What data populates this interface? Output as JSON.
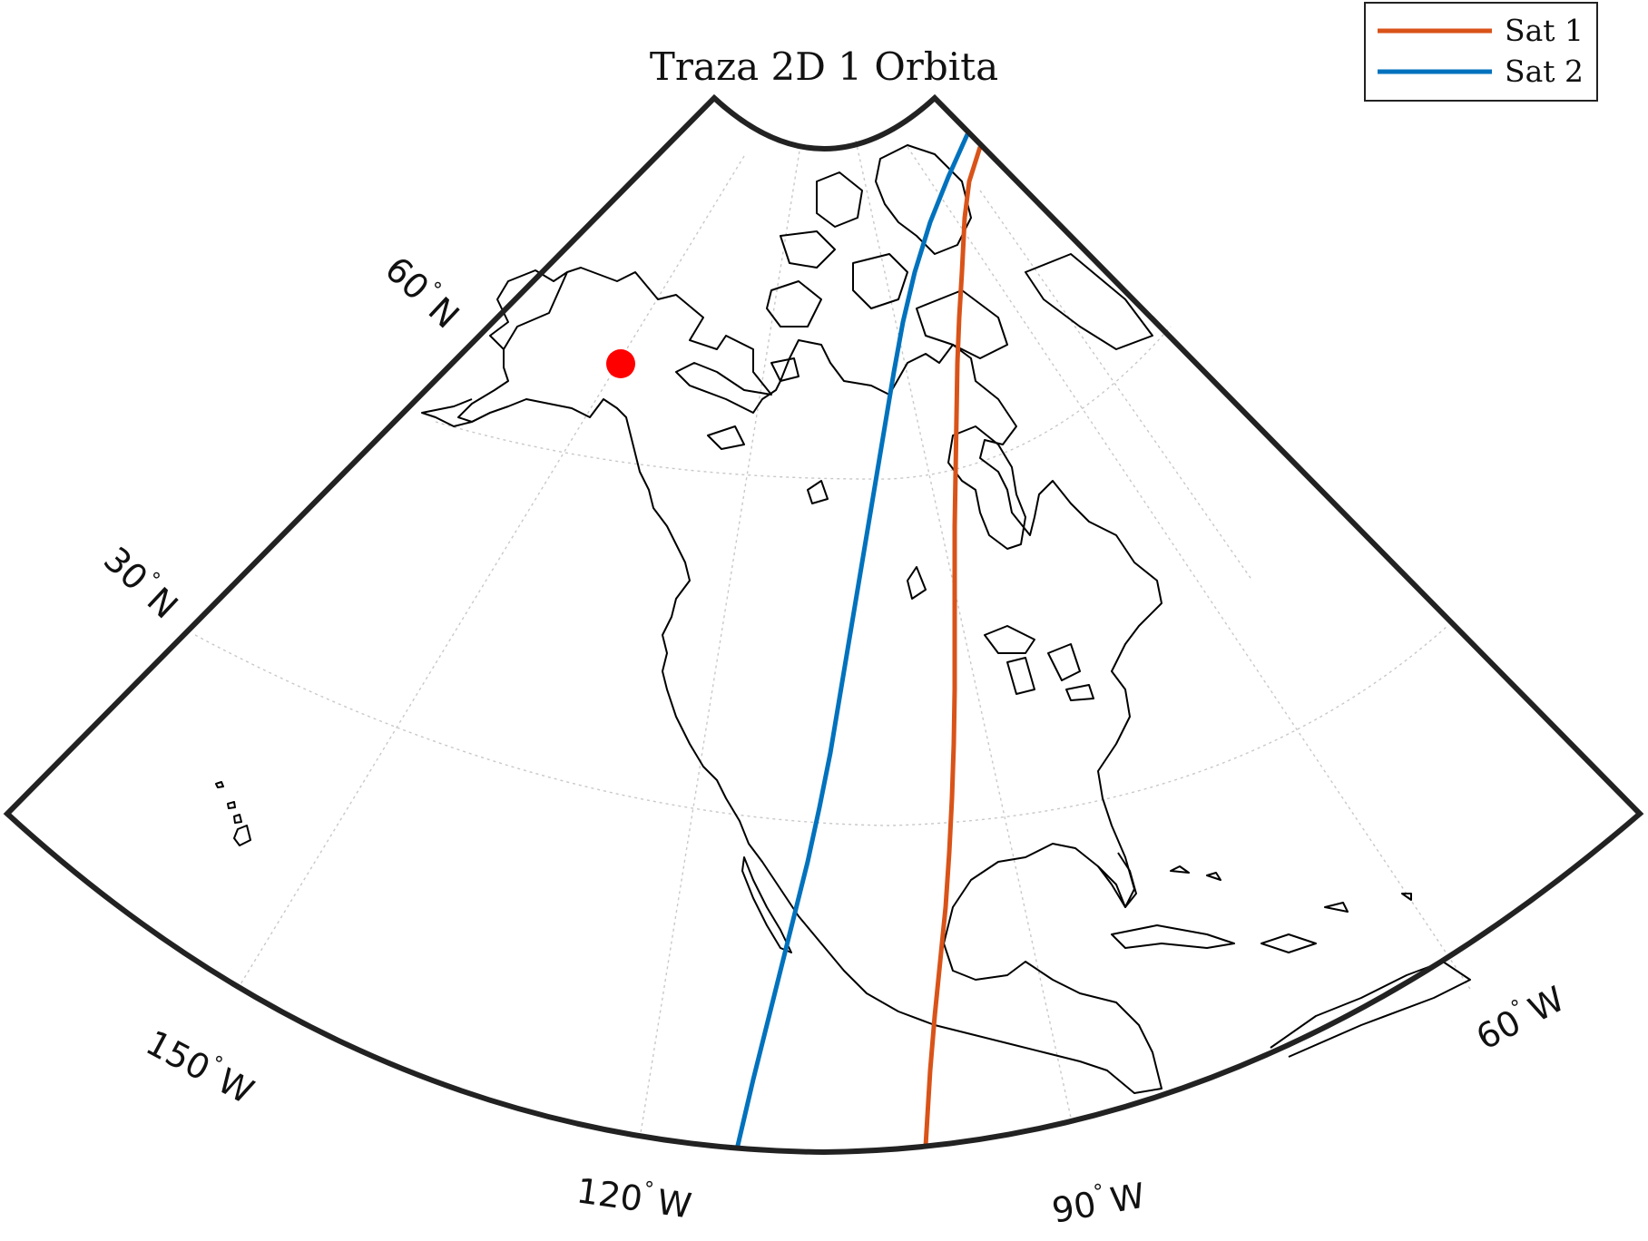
{
  "title": "Traza 2D 1 Orbita",
  "legend": {
    "position": "top-right",
    "entries": [
      {
        "label": "Sat 1",
        "color": "#d95319"
      },
      {
        "label": "Sat 2",
        "color": "#0072bd"
      }
    ]
  },
  "projection": "conic",
  "latitude_labels": [
    {
      "value": "60",
      "hemisphere": "N"
    },
    {
      "value": "30",
      "hemisphere": "N"
    }
  ],
  "longitude_labels": [
    {
      "value": "150",
      "hemisphere": "W"
    },
    {
      "value": "120",
      "hemisphere": "W"
    },
    {
      "value": "90",
      "hemisphere": "W"
    },
    {
      "value": "60",
      "hemisphere": "W"
    }
  ],
  "degree_symbol": "°",
  "grid": true,
  "marker": {
    "name": "ground station",
    "color": "#ff0000"
  },
  "colors": {
    "frame": "#222222",
    "coast": "#000000",
    "grid": "#c8c8c8"
  }
}
